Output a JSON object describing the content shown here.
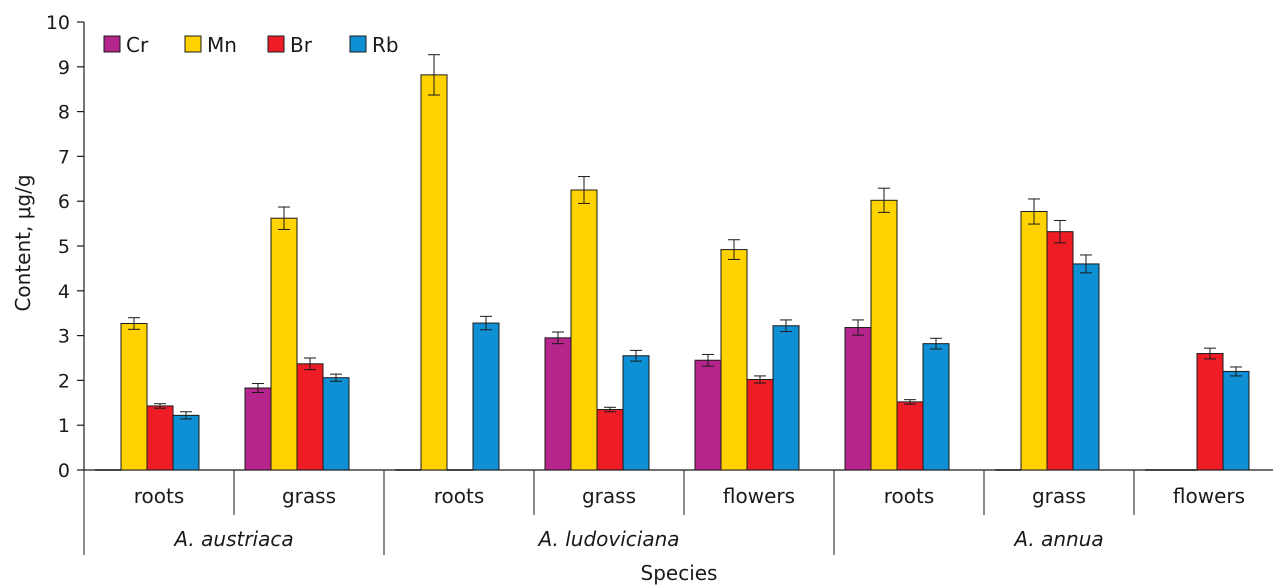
{
  "chart_data": {
    "type": "bar",
    "xlabel": "Species",
    "ylabel": "Content, μg/g",
    "ylim": [
      0,
      10
    ],
    "yticks": [
      0,
      1,
      2,
      3,
      4,
      5,
      6,
      7,
      8,
      9,
      10
    ],
    "grid": false,
    "legend_position": "top-left",
    "categories": [
      "roots",
      "grass",
      "roots",
      "grass",
      "flowers",
      "roots",
      "grass",
      "flowers"
    ],
    "groups": [
      {
        "name": "A. austriaca",
        "categories": [
          "roots",
          "grass"
        ]
      },
      {
        "name": "A. ludoviciana",
        "categories": [
          "roots",
          "grass",
          "flowers"
        ]
      },
      {
        "name": "A. annua",
        "categories": [
          "roots",
          "grass",
          "flowers"
        ]
      }
    ],
    "series": [
      {
        "name": "Cr",
        "color": "#b5258c",
        "values": [
          0,
          1.83,
          0,
          2.95,
          2.45,
          3.18,
          0,
          0
        ],
        "errors": [
          0,
          0.1,
          0,
          0.13,
          0.13,
          0.17,
          0,
          0
        ]
      },
      {
        "name": "Mn",
        "color": "#ffd200",
        "values": [
          3.27,
          5.62,
          8.82,
          6.25,
          4.92,
          6.02,
          5.77,
          0
        ],
        "errors": [
          0.13,
          0.25,
          0.45,
          0.3,
          0.22,
          0.27,
          0.28,
          0
        ]
      },
      {
        "name": "Br",
        "color": "#ee1c25",
        "values": [
          1.43,
          2.37,
          0,
          1.35,
          2.02,
          1.52,
          5.32,
          2.6
        ],
        "errors": [
          0.05,
          0.13,
          0,
          0.05,
          0.08,
          0.05,
          0.25,
          0.12
        ]
      },
      {
        "name": "Rb",
        "color": "#0f8fd4",
        "values": [
          1.22,
          2.06,
          3.28,
          2.55,
          3.22,
          2.82,
          4.6,
          2.2
        ],
        "errors": [
          0.08,
          0.08,
          0.15,
          0.12,
          0.13,
          0.12,
          0.2,
          0.1
        ]
      }
    ]
  }
}
